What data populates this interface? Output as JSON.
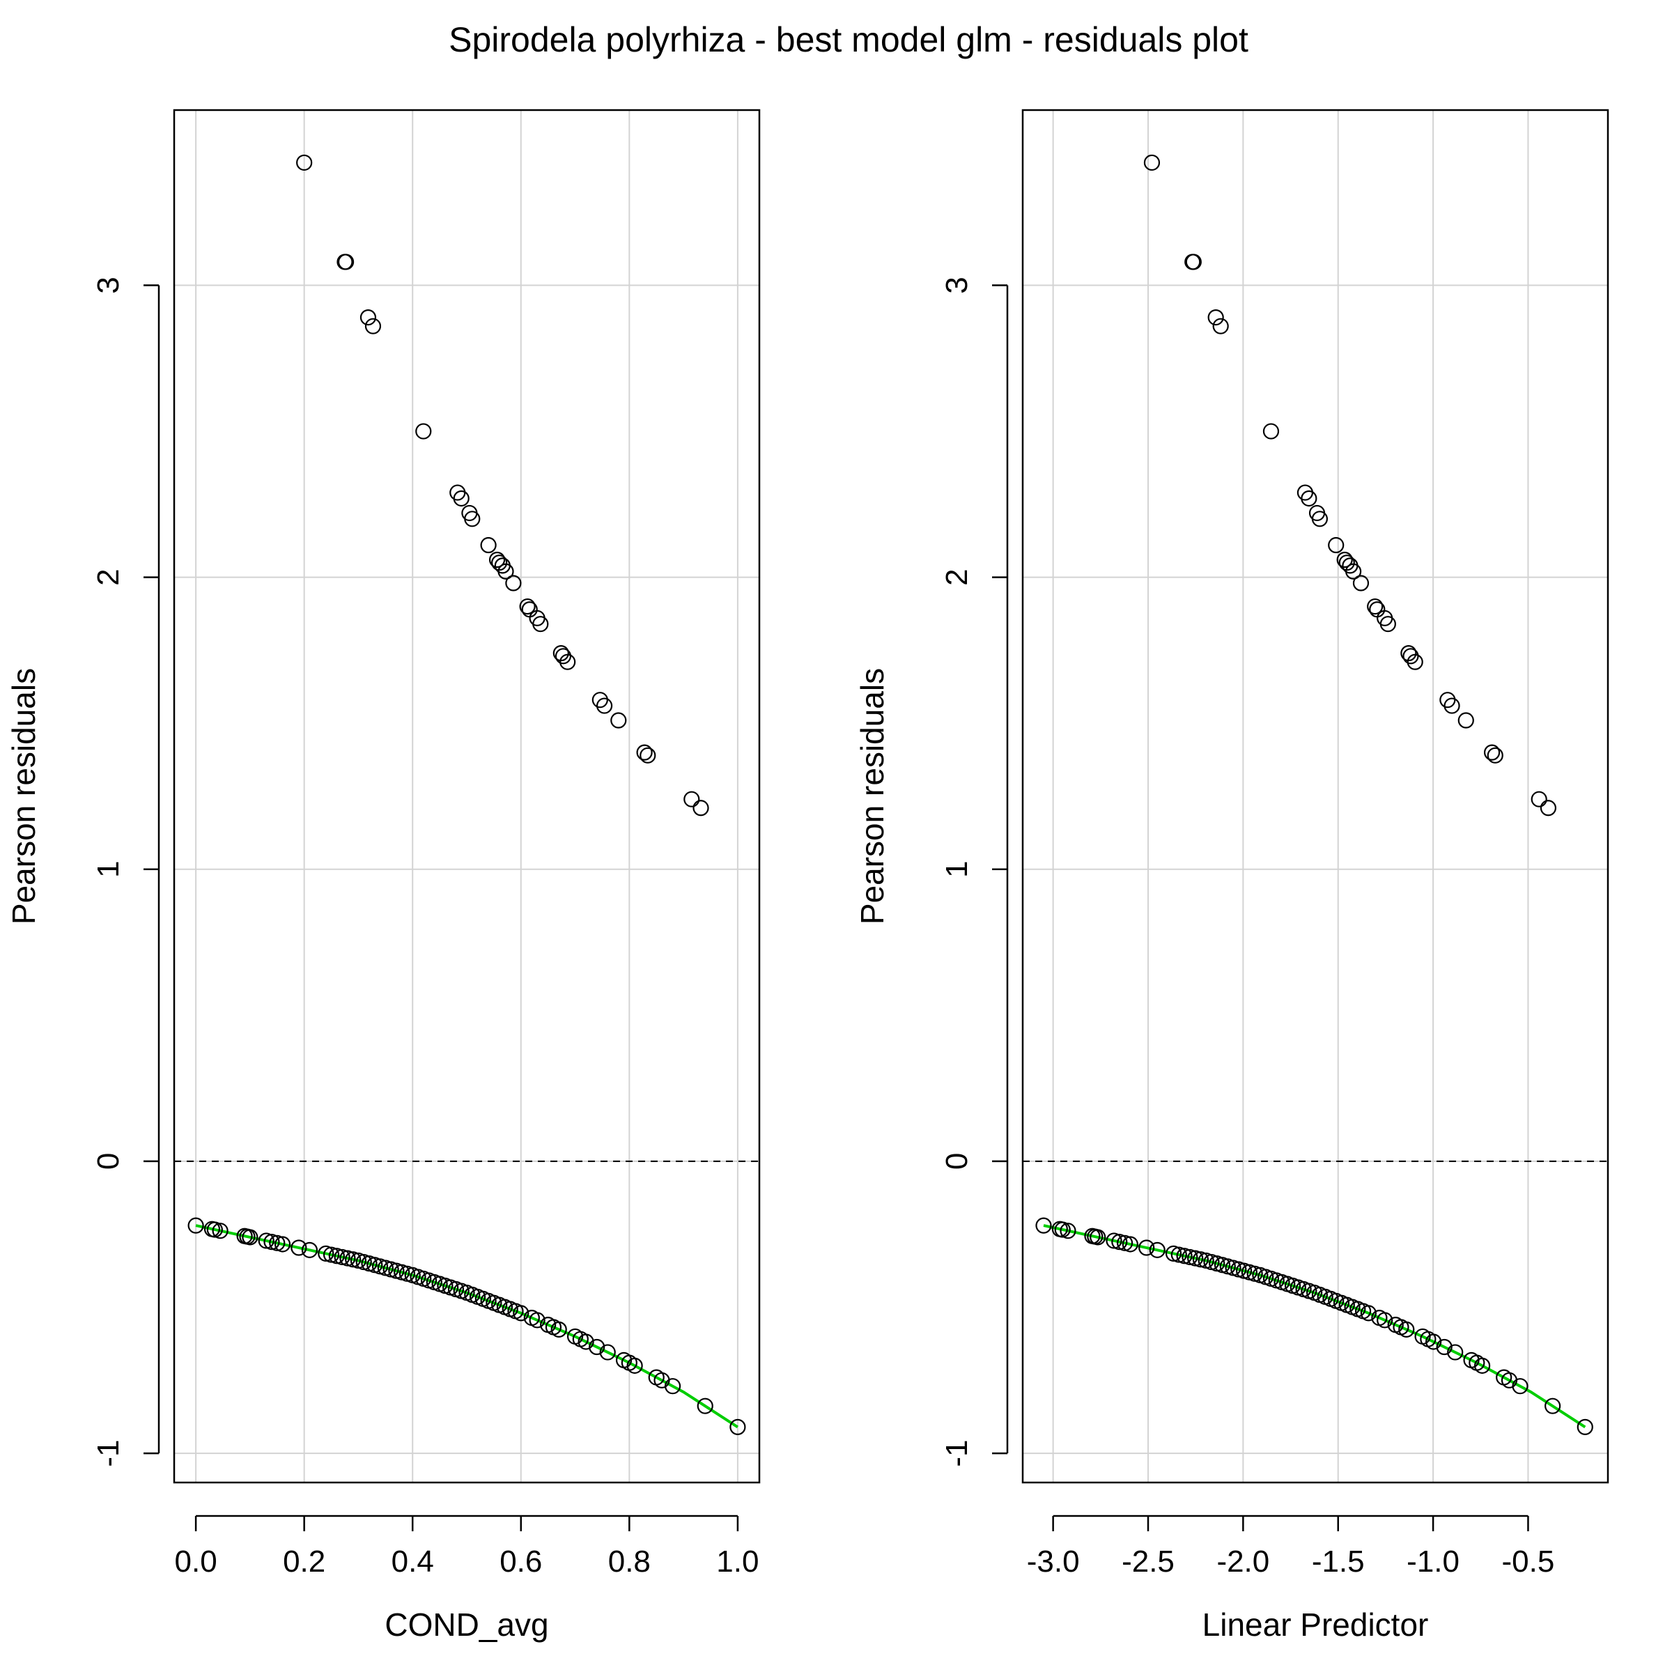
{
  "title": "Spirodela polyrhiza - best model glm - residuals plot",
  "colors": {
    "grid": "#d3d3d3",
    "points": "#000000",
    "smoother": "#00cd00",
    "zero_line": "#000000"
  },
  "chart_data": [
    {
      "type": "scatter",
      "xlabel": "COND_avg",
      "ylabel": "Pearson residuals",
      "xlim": [
        -0.04,
        1.04
      ],
      "ylim": [
        -1.1,
        3.6
      ],
      "xticks": [
        0.0,
        0.2,
        0.4,
        0.6,
        0.8,
        1.0
      ],
      "xtick_labels": [
        "0.0",
        "0.2",
        "0.4",
        "0.6",
        "0.8",
        "1.0"
      ],
      "yticks": [
        -1,
        0,
        1,
        2,
        3
      ],
      "ytick_labels": [
        "-1",
        "0",
        "1",
        "2",
        "3"
      ],
      "grid": true,
      "reference_line": {
        "y": 0,
        "style": "dashed"
      },
      "upper_points": {
        "x": [
          0.2,
          0.275,
          0.277,
          0.318,
          0.327,
          0.42,
          0.483,
          0.49,
          0.505,
          0.51,
          0.54,
          0.556,
          0.56,
          0.566,
          0.572,
          0.586,
          0.612,
          0.616,
          0.63,
          0.636,
          0.674,
          0.678,
          0.686,
          0.746,
          0.754,
          0.78,
          0.828,
          0.834,
          0.915,
          0.932
        ],
        "y": [
          3.42,
          3.08,
          3.08,
          2.89,
          2.86,
          2.5,
          2.29,
          2.27,
          2.22,
          2.2,
          2.11,
          2.06,
          2.05,
          2.04,
          2.02,
          1.98,
          1.9,
          1.89,
          1.86,
          1.84,
          1.74,
          1.73,
          1.71,
          1.58,
          1.56,
          1.51,
          1.4,
          1.39,
          1.24,
          1.21
        ]
      },
      "lower_curve": {
        "x": [
          0.0,
          0.1,
          0.2,
          0.3,
          0.4,
          0.5,
          0.6,
          0.7,
          0.8,
          0.9,
          1.0
        ],
        "y": [
          -0.22,
          -0.26,
          -0.3,
          -0.34,
          -0.39,
          -0.45,
          -0.52,
          -0.6,
          -0.69,
          -0.79,
          -0.91
        ]
      },
      "lower_points_x": [
        0.0,
        0.03,
        0.035,
        0.045,
        0.09,
        0.095,
        0.1,
        0.13,
        0.14,
        0.15,
        0.16,
        0.19,
        0.21,
        0.24,
        0.25,
        0.26,
        0.27,
        0.28,
        0.29,
        0.3,
        0.31,
        0.32,
        0.33,
        0.34,
        0.35,
        0.36,
        0.37,
        0.38,
        0.39,
        0.4,
        0.41,
        0.42,
        0.43,
        0.44,
        0.45,
        0.46,
        0.47,
        0.48,
        0.49,
        0.5,
        0.51,
        0.52,
        0.53,
        0.54,
        0.55,
        0.56,
        0.57,
        0.58,
        0.59,
        0.6,
        0.62,
        0.63,
        0.65,
        0.66,
        0.67,
        0.7,
        0.71,
        0.72,
        0.74,
        0.76,
        0.79,
        0.8,
        0.81,
        0.85,
        0.86,
        0.88,
        0.94,
        1.0
      ]
    },
    {
      "type": "scatter",
      "xlabel": "Linear Predictor",
      "ylabel": "Pearson residuals",
      "xlim": [
        -3.16,
        -0.08
      ],
      "ylim": [
        -1.1,
        3.6
      ],
      "xticks": [
        -3.0,
        -2.5,
        -2.0,
        -1.5,
        -1.0,
        -0.5
      ],
      "xtick_labels": [
        "-3.0",
        "-2.5",
        "-2.0",
        "-1.5",
        "-1.0",
        "-0.5"
      ],
      "yticks": [
        -1,
        0,
        1,
        2,
        3
      ],
      "ytick_labels": [
        "-1",
        "0",
        "1",
        "2",
        "3"
      ],
      "grid": true,
      "reference_line": {
        "y": 0,
        "style": "dashed"
      },
      "x_from_cond_linear": {
        "intercept": -3.05,
        "slope": 2.85
      },
      "note_shared_shape": "same residual pattern as left panel"
    }
  ]
}
